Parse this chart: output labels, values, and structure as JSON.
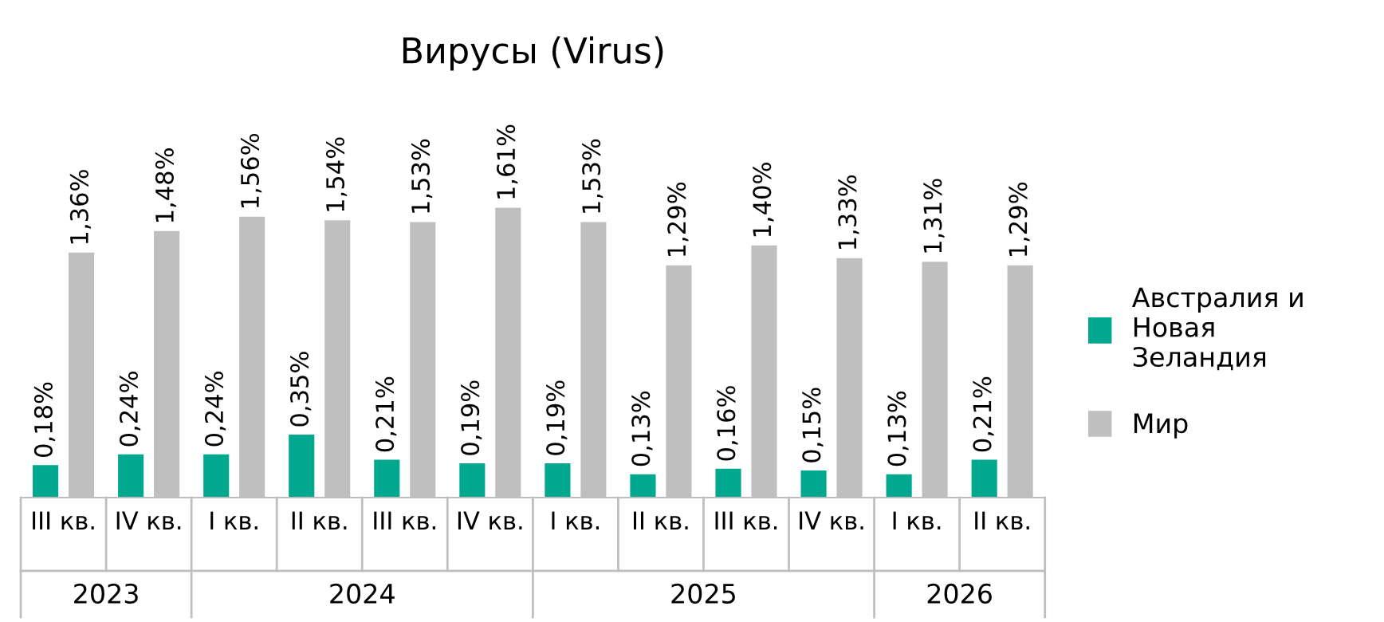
{
  "chart_data": {
    "type": "bar",
    "title": "Вирусы (Virus)",
    "categories": [
      "III кв.",
      "IV кв.",
      "I кв.",
      "II кв.",
      "III кв.",
      "IV кв.",
      "I кв.",
      "II кв.",
      "III кв.",
      "IV кв.",
      "I кв.",
      "II кв."
    ],
    "series": [
      {
        "name": "Австралия и Новая Зеландия",
        "color": "#00a88f",
        "values": [
          0.18,
          0.24,
          0.24,
          0.35,
          0.21,
          0.19,
          0.19,
          0.13,
          0.16,
          0.15,
          0.13,
          0.21
        ],
        "value_labels": [
          "0,18%",
          "0,24%",
          "0,24%",
          "0,35%",
          "0,21%",
          "0,19%",
          "0,19%",
          "0,13%",
          "0,16%",
          "0,15%",
          "0,13%",
          "0,21%"
        ]
      },
      {
        "name": "Мир",
        "color": "#bfbfbf",
        "values": [
          1.36,
          1.48,
          1.56,
          1.54,
          1.53,
          1.61,
          1.53,
          1.29,
          1.4,
          1.33,
          1.31,
          1.29
        ],
        "value_labels": [
          "1,36%",
          "1,48%",
          "1,56%",
          "1,54%",
          "1,53%",
          "1,61%",
          "1,53%",
          "1,29%",
          "1,40%",
          "1,33%",
          "1,31%",
          "1,29%"
        ]
      }
    ],
    "annotations": [
      "2023",
      "2024",
      "2025",
      "2026"
    ],
    "legend": "right",
    "grid": false
  }
}
